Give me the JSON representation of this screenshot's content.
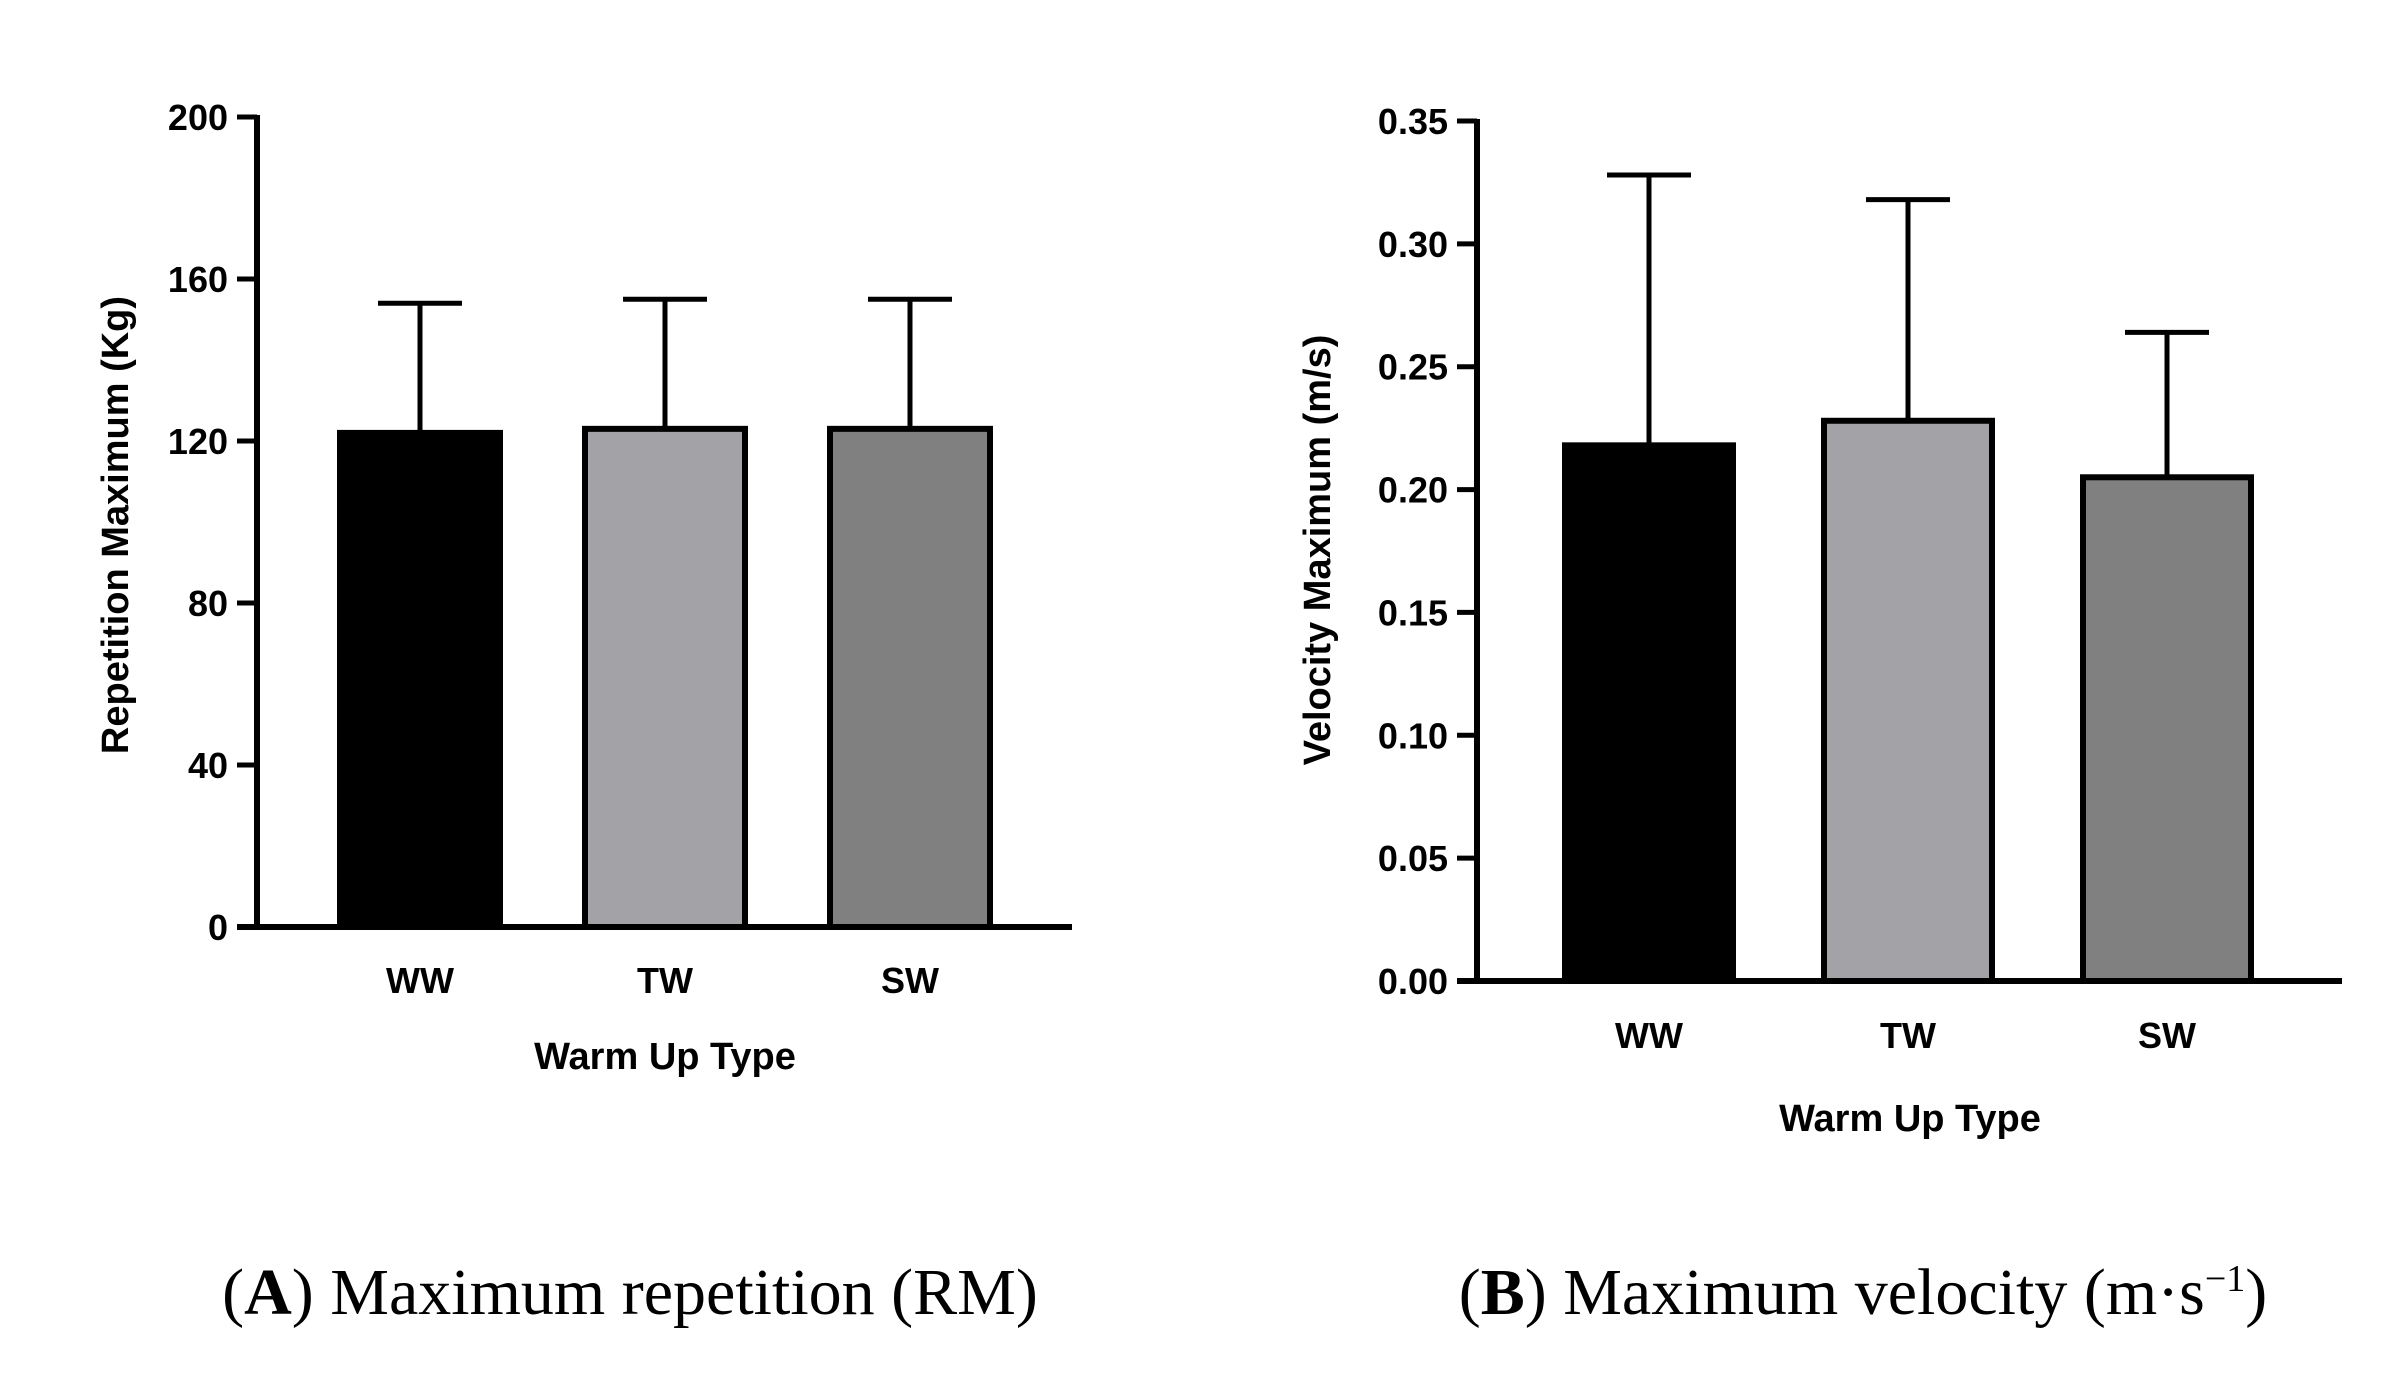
{
  "chart_data": [
    {
      "type": "bar",
      "panel": "A",
      "caption_letter": "A",
      "caption_text": "Maximum repetition (RM)",
      "categories": [
        "WW",
        "TW",
        "SW"
      ],
      "values": [
        122,
        123,
        123
      ],
      "error_upper": [
        154,
        155,
        155
      ],
      "bar_colors": [
        "#000000",
        "#a3a3a7",
        "#808080"
      ],
      "xlabel": "Warm Up Type",
      "ylabel": "Repetition Maximum (Kg)",
      "ylim": [
        0,
        200
      ],
      "yticks": [
        0,
        40,
        80,
        120,
        160,
        200
      ],
      "ytick_labels": [
        "0",
        "40",
        "80",
        "120",
        "160",
        "200"
      ],
      "grid": false
    },
    {
      "type": "bar",
      "panel": "B",
      "caption_letter": "B",
      "caption_text": "Maximum velocity (m·s",
      "caption_sup": "−1",
      "caption_close": ")",
      "categories": [
        "WW",
        "TW",
        "SW"
      ],
      "values": [
        0.218,
        0.228,
        0.205
      ],
      "error_upper": [
        0.328,
        0.318,
        0.264
      ],
      "bar_colors": [
        "#000000",
        "#a3a3a7",
        "#808080"
      ],
      "xlabel": "Warm Up Type",
      "ylabel": "Velocity Maximum (m/s)",
      "ylim": [
        0,
        0.35
      ],
      "yticks": [
        0,
        0.05,
        0.1,
        0.15,
        0.2,
        0.25,
        0.3,
        0.35
      ],
      "ytick_labels": [
        "0.00",
        "0.05",
        "0.10",
        "0.15",
        "0.20",
        "0.25",
        "0.30",
        "0.35"
      ],
      "grid": false
    }
  ]
}
